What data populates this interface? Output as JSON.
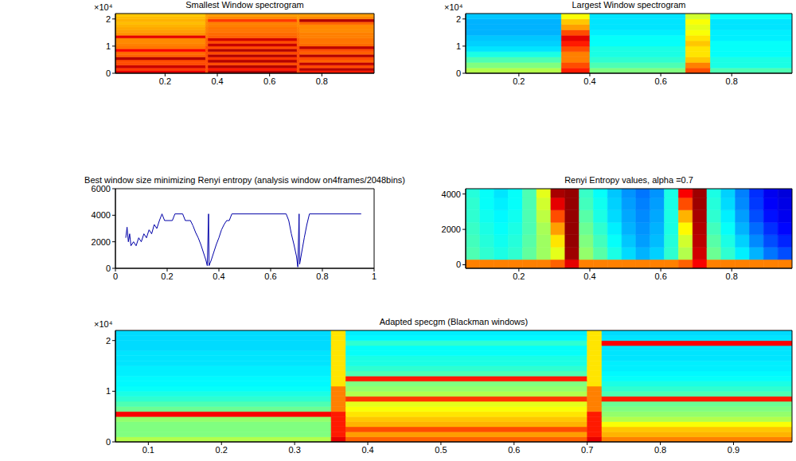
{
  "chart_data": [
    {
      "type": "heatmap",
      "title": "Smallest Window spectrogram",
      "annotation": "×10⁴",
      "xlim": [
        0.01,
        1.0
      ],
      "xticks": [
        0.2,
        0.4,
        0.6,
        0.8
      ],
      "ylim": [
        0,
        2.2
      ],
      "yticks": [
        0,
        1,
        2
      ],
      "color_range": [
        0,
        1
      ],
      "x_edges": [
        0.01,
        0.355,
        0.365,
        0.705,
        0.715,
        1.0
      ],
      "y_edges": [
        0,
        0.1,
        0.2,
        0.3,
        0.4,
        0.5,
        0.6,
        0.7,
        0.8,
        0.9,
        1.0,
        1.1,
        1.2,
        1.3,
        1.4,
        1.5,
        1.6,
        1.7,
        1.8,
        1.9,
        2.0,
        2.1,
        2.2
      ],
      "cells": [
        [
          0.9,
          0.8,
          0.95,
          0.8,
          0.85
        ],
        [
          0.82,
          0.8,
          0.85,
          0.8,
          0.95
        ],
        [
          0.93,
          0.8,
          0.95,
          0.8,
          0.8
        ],
        [
          0.8,
          0.8,
          0.8,
          0.8,
          0.94
        ],
        [
          0.8,
          0.8,
          0.95,
          0.8,
          0.78
        ],
        [
          0.95,
          0.8,
          0.82,
          0.8,
          0.8
        ],
        [
          0.78,
          0.8,
          0.95,
          0.8,
          0.95
        ],
        [
          0.77,
          0.8,
          0.8,
          0.8,
          0.78
        ],
        [
          0.88,
          0.8,
          0.95,
          0.8,
          0.8
        ],
        [
          0.76,
          0.8,
          0.8,
          0.8,
          0.94
        ],
        [
          0.75,
          0.78,
          0.93,
          0.78,
          0.77
        ],
        [
          0.74,
          0.78,
          0.8,
          0.78,
          0.76
        ],
        [
          0.74,
          0.78,
          0.92,
          0.78,
          0.76
        ],
        [
          0.9,
          0.76,
          0.78,
          0.76,
          0.75
        ],
        [
          0.73,
          0.76,
          0.77,
          0.76,
          0.75
        ],
        [
          0.72,
          0.75,
          0.76,
          0.75,
          0.74
        ],
        [
          0.71,
          0.75,
          0.76,
          0.75,
          0.74
        ],
        [
          0.7,
          0.74,
          0.75,
          0.74,
          0.74
        ],
        [
          0.69,
          0.74,
          0.75,
          0.74,
          0.78
        ],
        [
          0.7,
          0.74,
          0.82,
          0.74,
          0.95
        ],
        [
          0.69,
          0.72,
          0.74,
          0.72,
          0.74
        ],
        [
          0.68,
          0.72,
          0.72,
          0.72,
          0.72
        ]
      ]
    },
    {
      "type": "heatmap",
      "title": "Largest Window spectrogram",
      "annotation": "×10⁴",
      "xlim": [
        0.05,
        0.97
      ],
      "xticks": [
        0.2,
        0.4,
        0.6,
        0.8
      ],
      "ylim": [
        0,
        2.2
      ],
      "yticks": [
        0,
        1,
        2
      ],
      "color_range": [
        0,
        1
      ],
      "x_edges": [
        0.05,
        0.32,
        0.4,
        0.67,
        0.74,
        0.97
      ],
      "y_edges": [
        0,
        0.2,
        0.4,
        0.6,
        0.8,
        1.0,
        1.2,
        1.4,
        1.6,
        1.8,
        2.0,
        2.2
      ],
      "cells": [
        [
          0.55,
          0.85,
          0.5,
          0.8,
          0.45
        ],
        [
          0.5,
          0.8,
          0.45,
          0.75,
          0.4
        ],
        [
          0.45,
          0.75,
          0.42,
          0.68,
          0.4
        ],
        [
          0.4,
          0.75,
          0.4,
          0.65,
          0.38
        ],
        [
          0.35,
          0.8,
          0.4,
          0.65,
          0.38
        ],
        [
          0.33,
          0.85,
          0.38,
          0.68,
          0.38
        ],
        [
          0.32,
          0.9,
          0.38,
          0.65,
          0.36
        ],
        [
          0.3,
          0.8,
          0.36,
          0.62,
          0.36
        ],
        [
          0.3,
          0.72,
          0.35,
          0.6,
          0.35
        ],
        [
          0.3,
          0.68,
          0.35,
          0.62,
          0.35
        ],
        [
          0.32,
          0.62,
          0.35,
          0.58,
          0.38
        ]
      ]
    },
    {
      "type": "line",
      "title": "Best window size minimizing Renyi entropy (analysis window on4frames/2048bins)",
      "color": "#0000a8",
      "xlim": [
        0,
        1
      ],
      "xticks": [
        0,
        0.2,
        0.4,
        0.6,
        0.8,
        1
      ],
      "ylim": [
        0,
        6000
      ],
      "yticks": [
        0,
        2000,
        4000,
        6000
      ],
      "x": [
        0.04,
        0.045,
        0.05,
        0.055,
        0.06,
        0.07,
        0.08,
        0.09,
        0.1,
        0.11,
        0.12,
        0.13,
        0.14,
        0.15,
        0.16,
        0.17,
        0.18,
        0.19,
        0.22,
        0.23,
        0.26,
        0.27,
        0.29,
        0.3,
        0.31,
        0.32,
        0.33,
        0.34,
        0.35,
        0.355,
        0.36,
        0.362,
        0.37,
        0.38,
        0.39,
        0.4,
        0.41,
        0.42,
        0.43,
        0.44,
        0.45,
        0.66,
        0.67,
        0.68,
        0.69,
        0.7,
        0.705,
        0.71,
        0.712,
        0.72,
        0.73,
        0.74,
        0.75,
        0.95
      ],
      "values": [
        2300,
        3100,
        2000,
        2600,
        1700,
        2000,
        1700,
        2300,
        2000,
        2600,
        2300,
        2900,
        2600,
        3300,
        3000,
        3600,
        4100,
        3600,
        3600,
        4100,
        4100,
        3600,
        3600,
        3200,
        2700,
        2300,
        1800,
        1200,
        600,
        200,
        4100,
        200,
        600,
        1200,
        1800,
        2300,
        2900,
        3300,
        3600,
        3600,
        4100,
        4100,
        3600,
        2600,
        1800,
        900,
        100,
        4100,
        300,
        1200,
        2300,
        3300,
        4100,
        4100
      ]
    },
    {
      "type": "heatmap",
      "title": "Renyi Entropy values, alpha =0.7",
      "xlim": [
        0.05,
        0.97
      ],
      "xticks": [
        0.2,
        0.4,
        0.6,
        0.8
      ],
      "ylim": [
        -200,
        4300
      ],
      "yticks": [
        0,
        2000,
        4000
      ],
      "color_range": [
        0,
        1
      ],
      "x_edges": [
        0.05,
        0.09,
        0.13,
        0.17,
        0.21,
        0.25,
        0.29,
        0.33,
        0.37,
        0.41,
        0.45,
        0.49,
        0.53,
        0.57,
        0.61,
        0.65,
        0.69,
        0.73,
        0.77,
        0.81,
        0.85,
        0.89,
        0.93,
        0.97
      ],
      "y_edges": [
        -200,
        300,
        1000,
        1700,
        2400,
        3100,
        3800,
        4300
      ],
      "cells": [
        [
          0.75,
          0.75,
          0.75,
          0.75,
          0.75,
          0.75,
          0.78,
          0.9,
          0.75,
          0.75,
          0.75,
          0.75,
          0.75,
          0.75,
          0.75,
          0.78,
          0.88,
          0.75,
          0.75,
          0.75,
          0.75,
          0.75,
          0.75
        ],
        [
          0.45,
          0.42,
          0.4,
          0.42,
          0.47,
          0.53,
          0.6,
          0.97,
          0.52,
          0.46,
          0.4,
          0.34,
          0.3,
          0.33,
          0.42,
          0.55,
          0.92,
          0.48,
          0.42,
          0.36,
          0.3,
          0.24,
          0.2
        ],
        [
          0.44,
          0.41,
          0.39,
          0.41,
          0.46,
          0.53,
          0.65,
          0.98,
          0.5,
          0.44,
          0.38,
          0.32,
          0.28,
          0.31,
          0.41,
          0.58,
          0.94,
          0.46,
          0.4,
          0.33,
          0.26,
          0.2,
          0.16
        ],
        [
          0.43,
          0.4,
          0.38,
          0.4,
          0.45,
          0.54,
          0.72,
          0.98,
          0.48,
          0.42,
          0.36,
          0.3,
          0.27,
          0.3,
          0.4,
          0.63,
          0.95,
          0.44,
          0.38,
          0.3,
          0.23,
          0.17,
          0.13
        ],
        [
          0.42,
          0.39,
          0.37,
          0.39,
          0.45,
          0.56,
          0.8,
          0.98,
          0.46,
          0.4,
          0.34,
          0.29,
          0.26,
          0.29,
          0.4,
          0.7,
          0.96,
          0.42,
          0.36,
          0.28,
          0.2,
          0.14,
          0.11
        ],
        [
          0.42,
          0.38,
          0.36,
          0.38,
          0.45,
          0.58,
          0.9,
          0.98,
          0.44,
          0.39,
          0.33,
          0.28,
          0.25,
          0.28,
          0.4,
          0.8,
          0.97,
          0.41,
          0.34,
          0.26,
          0.18,
          0.12,
          0.1
        ],
        [
          0.41,
          0.38,
          0.35,
          0.38,
          0.45,
          0.6,
          0.96,
          0.98,
          0.43,
          0.38,
          0.32,
          0.27,
          0.24,
          0.27,
          0.4,
          0.88,
          0.97,
          0.4,
          0.33,
          0.25,
          0.17,
          0.11,
          0.09
        ]
      ]
    },
    {
      "type": "heatmap",
      "title": "Adapted specgm (Blackman windows)",
      "annotation": "×10⁴",
      "xlim": [
        0.055,
        0.98
      ],
      "xticks": [
        0.1,
        0.2,
        0.3,
        0.4,
        0.5,
        0.6,
        0.7,
        0.8,
        0.9
      ],
      "ylim": [
        0,
        2.2
      ],
      "yticks": [
        0,
        1,
        2
      ],
      "color_range": [
        0,
        1
      ],
      "x_edges": [
        0.055,
        0.35,
        0.37,
        0.7,
        0.72,
        0.98
      ],
      "y_edges": [
        0,
        0.1,
        0.2,
        0.3,
        0.4,
        0.5,
        0.6,
        0.7,
        0.8,
        0.9,
        1.0,
        1.1,
        1.2,
        1.3,
        1.4,
        1.5,
        1.6,
        1.7,
        1.8,
        1.9,
        2.0,
        2.1,
        2.2
      ],
      "cells": [
        [
          0.55,
          0.9,
          0.78,
          0.9,
          0.75
        ],
        [
          0.5,
          0.85,
          0.72,
          0.85,
          0.7
        ],
        [
          0.5,
          0.85,
          0.8,
          0.85,
          0.68
        ],
        [
          0.5,
          0.85,
          0.7,
          0.85,
          0.62
        ],
        [
          0.52,
          0.85,
          0.68,
          0.85,
          0.55
        ],
        [
          0.88,
          0.85,
          0.65,
          0.85,
          0.52
        ],
        [
          0.48,
          0.75,
          0.62,
          0.75,
          0.5
        ],
        [
          0.45,
          0.75,
          0.6,
          0.75,
          0.48
        ],
        [
          0.42,
          0.75,
          0.82,
          0.75,
          0.85
        ],
        [
          0.4,
          0.75,
          0.55,
          0.75,
          0.45
        ],
        [
          0.38,
          0.75,
          0.52,
          0.75,
          0.42
        ],
        [
          0.37,
          0.65,
          0.5,
          0.65,
          0.4
        ],
        [
          0.37,
          0.65,
          0.85,
          0.65,
          0.38
        ],
        [
          0.36,
          0.65,
          0.45,
          0.65,
          0.37
        ],
        [
          0.36,
          0.65,
          0.42,
          0.65,
          0.36
        ],
        [
          0.35,
          0.65,
          0.4,
          0.65,
          0.36
        ],
        [
          0.35,
          0.65,
          0.4,
          0.65,
          0.35
        ],
        [
          0.35,
          0.65,
          0.38,
          0.65,
          0.35
        ],
        [
          0.34,
          0.65,
          0.38,
          0.65,
          0.35
        ],
        [
          0.34,
          0.65,
          0.42,
          0.65,
          0.88
        ],
        [
          0.34,
          0.65,
          0.37,
          0.65,
          0.35
        ],
        [
          0.34,
          0.65,
          0.36,
          0.65,
          0.34
        ]
      ]
    }
  ]
}
